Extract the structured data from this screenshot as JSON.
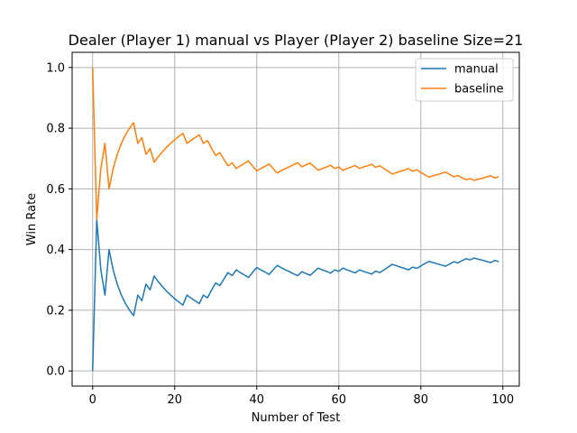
{
  "chart_data": {
    "type": "line",
    "title": "Dealer (Player 1) manual vs Player (Player 2) baseline Size=21",
    "xlabel": "Number of Test",
    "ylabel": "Win Rate",
    "xlim": [
      -5,
      104
    ],
    "ylim": [
      -0.05,
      1.05
    ],
    "xticks": [
      0,
      20,
      40,
      60,
      80,
      100
    ],
    "yticks": [
      0.0,
      0.2,
      0.4,
      0.6,
      0.8,
      1.0
    ],
    "xtick_labels": [
      "0",
      "20",
      "40",
      "60",
      "80",
      "100"
    ],
    "ytick_labels": [
      "0.0",
      "0.2",
      "0.4",
      "0.6",
      "0.8",
      "1.0"
    ],
    "grid": true,
    "legend_position": "top-right",
    "series": [
      {
        "name": "manual",
        "color": "#1f77b4",
        "points": [
          [
            0,
            0.0
          ],
          [
            1,
            0.5
          ],
          [
            2,
            0.333
          ],
          [
            3,
            0.25
          ],
          [
            4,
            0.4
          ],
          [
            5,
            0.333
          ],
          [
            6,
            0.286
          ],
          [
            7,
            0.25
          ],
          [
            8,
            0.222
          ],
          [
            9,
            0.2
          ],
          [
            10,
            0.182
          ],
          [
            11,
            0.25
          ],
          [
            12,
            0.231
          ],
          [
            13,
            0.286
          ],
          [
            14,
            0.267
          ],
          [
            15,
            0.313
          ],
          [
            16,
            0.294
          ],
          [
            17,
            0.278
          ],
          [
            18,
            0.263
          ],
          [
            19,
            0.25
          ],
          [
            20,
            0.238
          ],
          [
            21,
            0.227
          ],
          [
            22,
            0.217
          ],
          [
            23,
            0.25
          ],
          [
            24,
            0.24
          ],
          [
            25,
            0.231
          ],
          [
            26,
            0.222
          ],
          [
            27,
            0.25
          ],
          [
            28,
            0.241
          ],
          [
            29,
            0.267
          ],
          [
            30,
            0.29
          ],
          [
            31,
            0.281
          ],
          [
            32,
            0.303
          ],
          [
            33,
            0.324
          ],
          [
            34,
            0.314
          ],
          [
            35,
            0.333
          ],
          [
            36,
            0.324
          ],
          [
            37,
            0.316
          ],
          [
            38,
            0.308
          ],
          [
            39,
            0.325
          ],
          [
            40,
            0.341
          ],
          [
            41,
            0.333
          ],
          [
            42,
            0.326
          ],
          [
            43,
            0.318
          ],
          [
            44,
            0.333
          ],
          [
            45,
            0.348
          ],
          [
            46,
            0.34
          ],
          [
            47,
            0.333
          ],
          [
            48,
            0.327
          ],
          [
            49,
            0.32
          ],
          [
            50,
            0.314
          ],
          [
            51,
            0.327
          ],
          [
            52,
            0.321
          ],
          [
            53,
            0.315
          ],
          [
            54,
            0.327
          ],
          [
            55,
            0.339
          ],
          [
            56,
            0.333
          ],
          [
            57,
            0.328
          ],
          [
            58,
            0.322
          ],
          [
            59,
            0.333
          ],
          [
            60,
            0.328
          ],
          [
            61,
            0.339
          ],
          [
            62,
            0.333
          ],
          [
            63,
            0.328
          ],
          [
            64,
            0.323
          ],
          [
            65,
            0.333
          ],
          [
            66,
            0.328
          ],
          [
            67,
            0.324
          ],
          [
            68,
            0.319
          ],
          [
            69,
            0.329
          ],
          [
            70,
            0.324
          ],
          [
            71,
            0.333
          ],
          [
            72,
            0.342
          ],
          [
            73,
            0.351
          ],
          [
            74,
            0.347
          ],
          [
            75,
            0.342
          ],
          [
            76,
            0.338
          ],
          [
            77,
            0.333
          ],
          [
            78,
            0.342
          ],
          [
            79,
            0.338
          ],
          [
            80,
            0.346
          ],
          [
            81,
            0.354
          ],
          [
            82,
            0.361
          ],
          [
            83,
            0.357
          ],
          [
            84,
            0.353
          ],
          [
            85,
            0.349
          ],
          [
            86,
            0.345
          ],
          [
            87,
            0.352
          ],
          [
            88,
            0.36
          ],
          [
            89,
            0.356
          ],
          [
            90,
            0.363
          ],
          [
            91,
            0.37
          ],
          [
            92,
            0.366
          ],
          [
            93,
            0.372
          ],
          [
            94,
            0.368
          ],
          [
            95,
            0.365
          ],
          [
            96,
            0.361
          ],
          [
            97,
            0.357
          ],
          [
            98,
            0.364
          ],
          [
            99,
            0.36
          ]
        ]
      },
      {
        "name": "baseline",
        "color": "#ff7f0e",
        "points": [
          [
            0,
            1.0
          ],
          [
            1,
            0.5
          ],
          [
            2,
            0.667
          ],
          [
            3,
            0.75
          ],
          [
            4,
            0.6
          ],
          [
            5,
            0.667
          ],
          [
            6,
            0.714
          ],
          [
            7,
            0.75
          ],
          [
            8,
            0.778
          ],
          [
            9,
            0.8
          ],
          [
            10,
            0.818
          ],
          [
            11,
            0.75
          ],
          [
            12,
            0.769
          ],
          [
            13,
            0.714
          ],
          [
            14,
            0.733
          ],
          [
            15,
            0.688
          ],
          [
            16,
            0.706
          ],
          [
            17,
            0.722
          ],
          [
            18,
            0.737
          ],
          [
            19,
            0.75
          ],
          [
            20,
            0.762
          ],
          [
            21,
            0.773
          ],
          [
            22,
            0.783
          ],
          [
            23,
            0.75
          ],
          [
            24,
            0.76
          ],
          [
            25,
            0.769
          ],
          [
            26,
            0.778
          ],
          [
            27,
            0.75
          ],
          [
            28,
            0.759
          ],
          [
            29,
            0.733
          ],
          [
            30,
            0.71
          ],
          [
            31,
            0.719
          ],
          [
            32,
            0.697
          ],
          [
            33,
            0.676
          ],
          [
            34,
            0.686
          ],
          [
            35,
            0.667
          ],
          [
            36,
            0.676
          ],
          [
            37,
            0.684
          ],
          [
            38,
            0.692
          ],
          [
            39,
            0.675
          ],
          [
            40,
            0.659
          ],
          [
            41,
            0.667
          ],
          [
            42,
            0.674
          ],
          [
            43,
            0.682
          ],
          [
            44,
            0.667
          ],
          [
            45,
            0.652
          ],
          [
            46,
            0.66
          ],
          [
            47,
            0.667
          ],
          [
            48,
            0.673
          ],
          [
            49,
            0.68
          ],
          [
            50,
            0.686
          ],
          [
            51,
            0.673
          ],
          [
            52,
            0.679
          ],
          [
            53,
            0.685
          ],
          [
            54,
            0.673
          ],
          [
            55,
            0.661
          ],
          [
            56,
            0.667
          ],
          [
            57,
            0.672
          ],
          [
            58,
            0.678
          ],
          [
            59,
            0.667
          ],
          [
            60,
            0.672
          ],
          [
            61,
            0.661
          ],
          [
            62,
            0.667
          ],
          [
            63,
            0.672
          ],
          [
            64,
            0.677
          ],
          [
            65,
            0.667
          ],
          [
            66,
            0.672
          ],
          [
            67,
            0.676
          ],
          [
            68,
            0.681
          ],
          [
            69,
            0.671
          ],
          [
            70,
            0.676
          ],
          [
            71,
            0.667
          ],
          [
            72,
            0.658
          ],
          [
            73,
            0.649
          ],
          [
            74,
            0.653
          ],
          [
            75,
            0.658
          ],
          [
            76,
            0.662
          ],
          [
            77,
            0.667
          ],
          [
            78,
            0.658
          ],
          [
            79,
            0.663
          ],
          [
            80,
            0.654
          ],
          [
            81,
            0.646
          ],
          [
            82,
            0.639
          ],
          [
            83,
            0.643
          ],
          [
            84,
            0.647
          ],
          [
            85,
            0.651
          ],
          [
            86,
            0.655
          ],
          [
            87,
            0.648
          ],
          [
            88,
            0.64
          ],
          [
            89,
            0.644
          ],
          [
            90,
            0.637
          ],
          [
            91,
            0.63
          ],
          [
            92,
            0.634
          ],
          [
            93,
            0.628
          ],
          [
            94,
            0.632
          ],
          [
            95,
            0.635
          ],
          [
            96,
            0.639
          ],
          [
            97,
            0.643
          ],
          [
            98,
            0.636
          ],
          [
            99,
            0.64
          ]
        ]
      }
    ]
  }
}
